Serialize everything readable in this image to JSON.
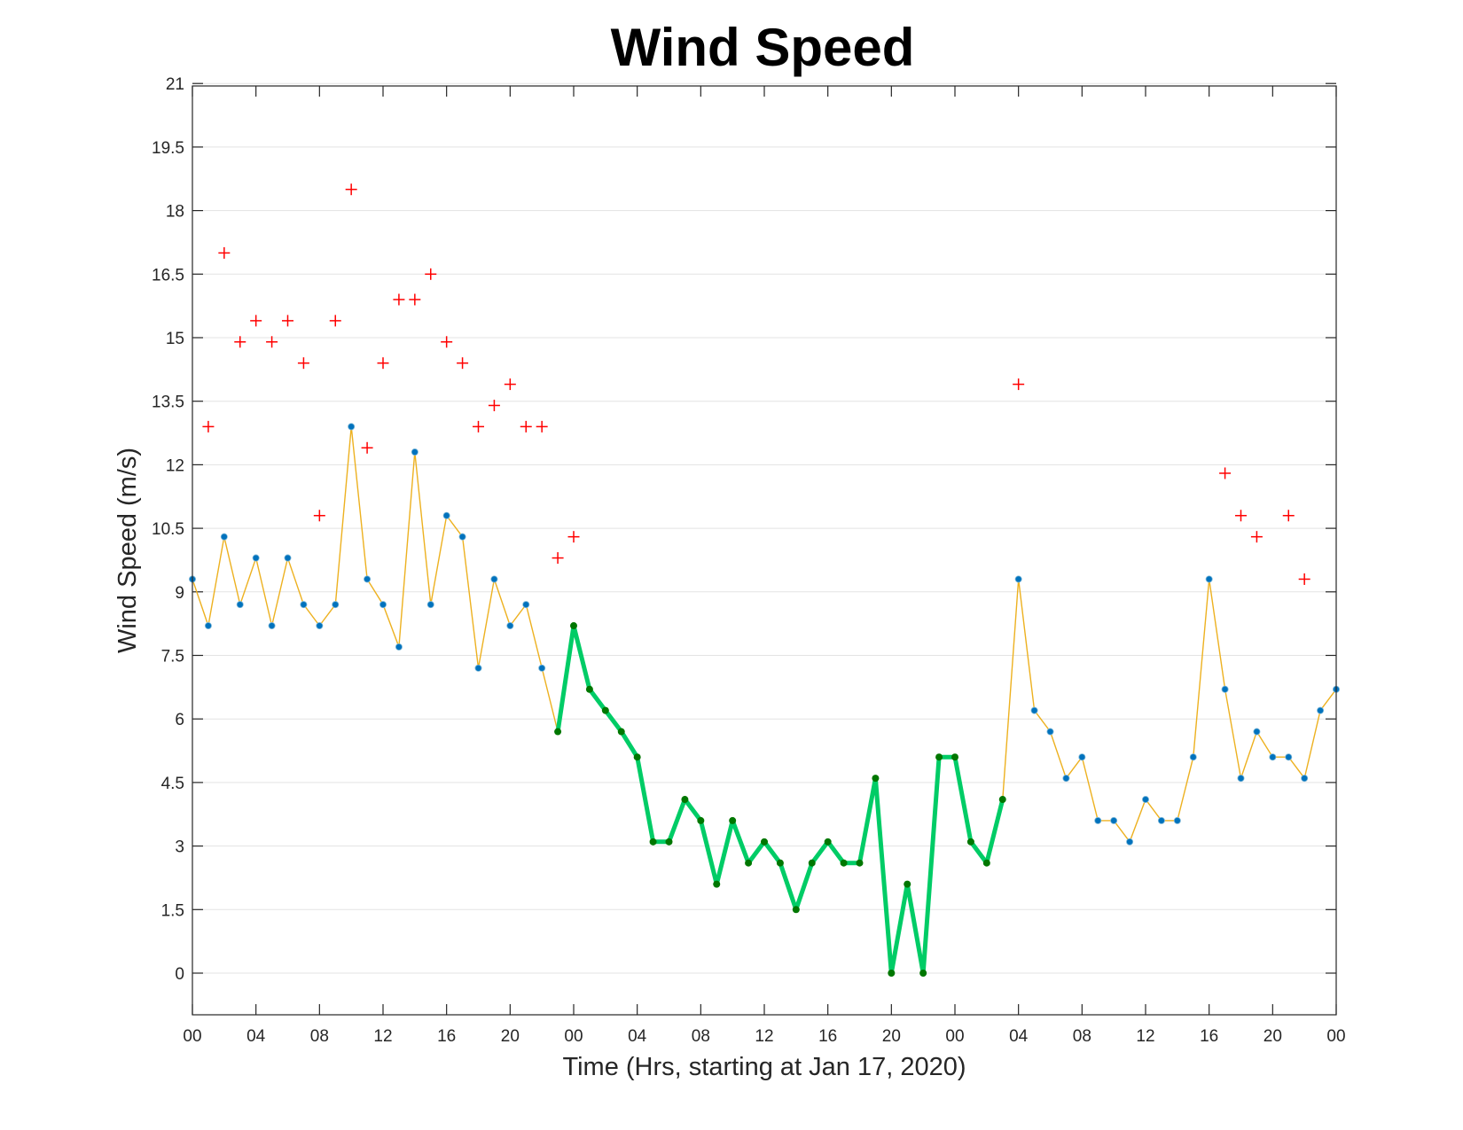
{
  "chart_data": {
    "type": "line",
    "title": "Wind Speed",
    "xlabel": "Time (Hrs, starting at Jan 17, 2020)",
    "ylabel": "Wind Speed (m/s)",
    "ylim": [
      -2,
      21
    ],
    "xlim": [
      0,
      72
    ],
    "yticks": [
      0,
      1.5,
      3,
      4.5,
      6,
      7.5,
      9,
      10.5,
      12,
      13.5,
      15,
      16.5,
      18,
      19.5,
      21
    ],
    "ytick_labels": [
      "0",
      "1.5",
      "3",
      "4.5",
      "6",
      "7.5",
      "9",
      "10.5",
      "12",
      "13.5",
      "15",
      "16.5",
      "18",
      "19.5",
      "21"
    ],
    "xticks": [
      0,
      4,
      8,
      12,
      16,
      20,
      24,
      28,
      32,
      36,
      40,
      44,
      48,
      52,
      56,
      60,
      64,
      68,
      72
    ],
    "xtick_labels": [
      "00",
      "04",
      "08",
      "12",
      "16",
      "20",
      "00",
      "04",
      "08",
      "12",
      "16",
      "20",
      "00",
      "04",
      "08",
      "12",
      "16",
      "20",
      "00"
    ],
    "grid": "horizontal",
    "colors": {
      "speed_line": "#EDB120",
      "speed_marker": "#0072BD",
      "highlight_line": "#00CC66",
      "highlight_marker": "#007700",
      "gust_marker": "#FF0000"
    },
    "series": [
      {
        "x": [
          0,
          1,
          2,
          3,
          4,
          5,
          6,
          7,
          8,
          9,
          10,
          11,
          12,
          13,
          14,
          15,
          16,
          17,
          18,
          19,
          20,
          21,
          22,
          23,
          24,
          25,
          26,
          27,
          28,
          29,
          30,
          31,
          32,
          33,
          34,
          35,
          36,
          37,
          38,
          39,
          40,
          41,
          42,
          43,
          44,
          45,
          46,
          47,
          48,
          49,
          50,
          51,
          52,
          53,
          54,
          55,
          56,
          57,
          58,
          59,
          60,
          61,
          62,
          63,
          64,
          65,
          66,
          67,
          68,
          69,
          70,
          71,
          72
        ],
        "values": [
          9.3,
          8.2,
          10.3,
          8.7,
          9.8,
          8.2,
          9.8,
          8.7,
          8.2,
          8.7,
          12.9,
          9.3,
          8.7,
          7.7,
          12.3,
          8.7,
          10.8,
          10.3,
          7.2,
          9.3,
          8.2,
          8.7,
          7.2,
          5.7,
          8.2,
          6.7,
          6.2,
          5.7,
          5.1,
          3.1,
          3.1,
          4.1,
          3.6,
          2.1,
          3.6,
          2.6,
          3.1,
          2.6,
          1.5,
          2.6,
          3.1,
          2.6,
          2.6,
          4.6,
          0,
          2.1,
          0,
          5.1,
          5.1,
          3.1,
          2.6,
          4.1,
          9.3,
          6.2,
          5.7,
          4.6,
          5.1,
          3.6,
          3.6,
          3.1,
          4.1,
          3.6,
          3.6,
          5.1,
          9.3,
          6.7,
          4.6,
          5.7,
          5.1,
          5.1,
          4.6,
          6.2,
          6.7
        ]
      },
      {
        "x": [
          23,
          24,
          25,
          26,
          27,
          28,
          29,
          30,
          31,
          32,
          33,
          34,
          35,
          36,
          37,
          38,
          39,
          40,
          41,
          42,
          43,
          44,
          45,
          46,
          47,
          48,
          49,
          50,
          51
        ],
        "values": [
          5.7,
          8.2,
          6.7,
          6.2,
          5.7,
          5.1,
          3.1,
          3.1,
          4.1,
          3.6,
          2.1,
          3.6,
          2.6,
          3.1,
          2.6,
          1.5,
          2.6,
          3.1,
          2.6,
          2.6,
          4.6,
          0,
          2.1,
          0,
          5.1,
          5.1,
          3.1,
          2.6,
          4.1
        ]
      },
      {
        "x": [
          1,
          2,
          3,
          4,
          5,
          6,
          7,
          8,
          9,
          10,
          11,
          12,
          13,
          14,
          15,
          16,
          17,
          18,
          19,
          20,
          21,
          22,
          23,
          24,
          52,
          65,
          66,
          67,
          69,
          70
        ],
        "values": [
          12.9,
          17,
          14.9,
          15.4,
          14.9,
          15.4,
          14.4,
          10.8,
          15.4,
          18.5,
          12.4,
          14.4,
          15.9,
          15.9,
          16.5,
          14.9,
          14.4,
          12.9,
          13.4,
          13.9,
          12.9,
          12.9,
          9.8,
          10.3,
          13.9,
          11.8,
          10.8,
          10.3,
          10.8,
          9.3
        ]
      }
    ]
  }
}
